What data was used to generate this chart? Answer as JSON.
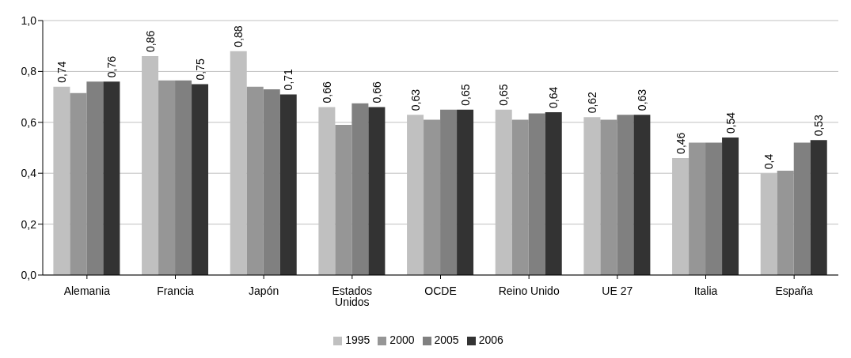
{
  "chart_data": {
    "type": "bar",
    "categories": [
      "Alemania",
      "Francia",
      "Japón",
      "Estados Unidos",
      "OCDE",
      "Reino Unido",
      "UE 27",
      "Italia",
      "España"
    ],
    "series": [
      {
        "name": "1995",
        "color": "#c0c0c0",
        "values": [
          0.74,
          0.86,
          0.88,
          0.66,
          0.63,
          0.65,
          0.62,
          0.46,
          0.4
        ],
        "value_labels": [
          "0,74",
          "0,86",
          "0,88",
          "0,66",
          "0,63",
          "0,65",
          "0,62",
          "0,46",
          "0,4"
        ]
      },
      {
        "name": "2000",
        "color": "#969696",
        "values": [
          0.715,
          0.765,
          0.74,
          0.59,
          0.61,
          0.61,
          0.61,
          0.52,
          0.41
        ]
      },
      {
        "name": "2005",
        "color": "#808080",
        "values": [
          0.76,
          0.765,
          0.73,
          0.675,
          0.65,
          0.635,
          0.63,
          0.52,
          0.52
        ]
      },
      {
        "name": "2006",
        "color": "#333333",
        "values": [
          0.76,
          0.75,
          0.71,
          0.66,
          0.65,
          0.64,
          0.63,
          0.54,
          0.53
        ],
        "value_labels": [
          "0,76",
          "0,75",
          "0,71",
          "0,66",
          "0,65",
          "0,64",
          "0,63",
          "0,54",
          "0,53"
        ]
      }
    ],
    "ylim": [
      0,
      1
    ],
    "yticks": [
      {
        "value": 0,
        "label": "0,0"
      },
      {
        "value": 0.2,
        "label": "0,2"
      },
      {
        "value": 0.4,
        "label": "0,4"
      },
      {
        "value": 0.6,
        "label": "0,6"
      },
      {
        "value": 0.8,
        "label": "0,8"
      },
      {
        "value": 1,
        "label": "1,0"
      }
    ],
    "grid": "y",
    "legend": "bottom"
  }
}
